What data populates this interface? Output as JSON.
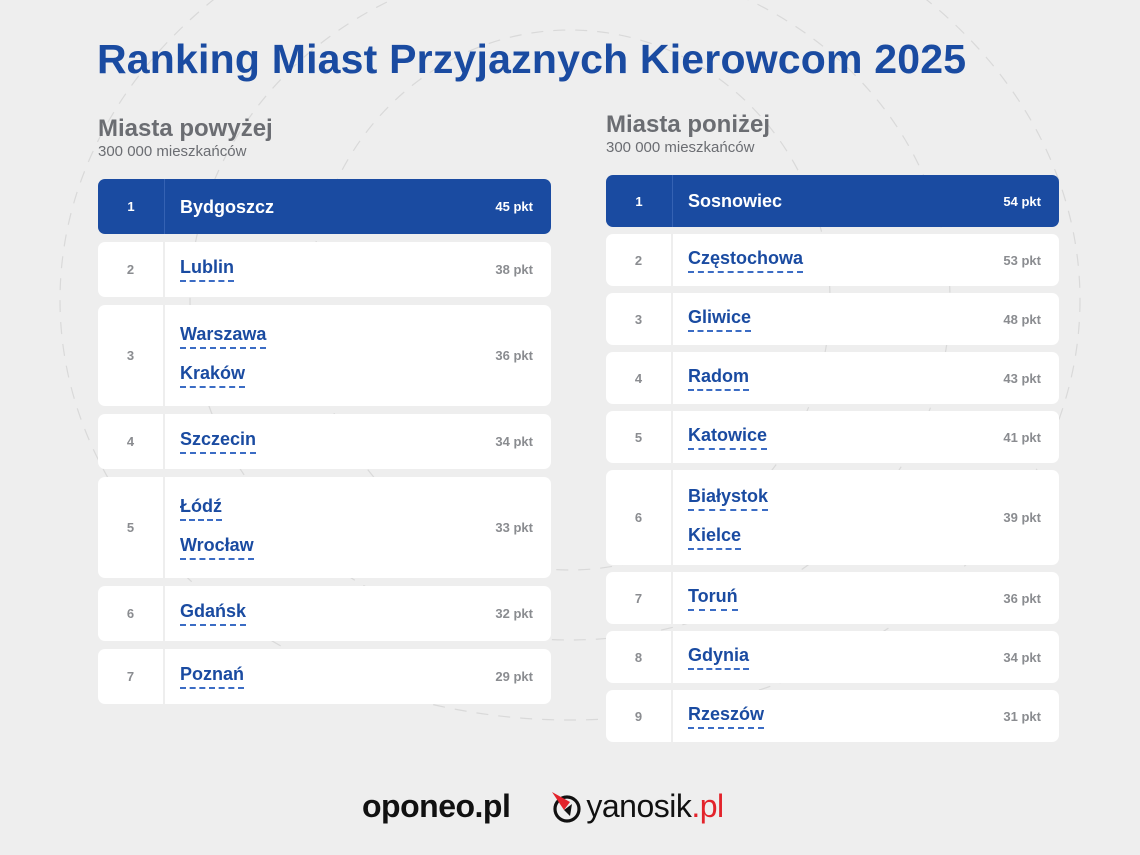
{
  "title": "Ranking Miast Przyjaznych Kierowcom 2025",
  "sections": {
    "above": {
      "heading": "Miasta powyżej",
      "subheading": "300 000 mieszkańców",
      "rows": [
        {
          "rank": "1",
          "cities": [
            "Bydgoszcz"
          ],
          "score": "45 pkt",
          "highlight": true
        },
        {
          "rank": "2",
          "cities": [
            "Lublin"
          ],
          "score": "38 pkt"
        },
        {
          "rank": "3",
          "cities": [
            "Warszawa",
            "Kraków"
          ],
          "score": "36 pkt"
        },
        {
          "rank": "4",
          "cities": [
            "Szczecin"
          ],
          "score": "34 pkt"
        },
        {
          "rank": "5",
          "cities": [
            "Łódź",
            "Wrocław"
          ],
          "score": "33 pkt"
        },
        {
          "rank": "6",
          "cities": [
            "Gdańsk"
          ],
          "score": "32 pkt"
        },
        {
          "rank": "7",
          "cities": [
            "Poznań"
          ],
          "score": "29 pkt"
        }
      ]
    },
    "below": {
      "heading": "Miasta poniżej",
      "subheading": "300 000 mieszkańców",
      "rows": [
        {
          "rank": "1",
          "cities": [
            "Sosnowiec"
          ],
          "score": "54 pkt",
          "highlight": true
        },
        {
          "rank": "2",
          "cities": [
            "Częstochowa"
          ],
          "score": "53 pkt"
        },
        {
          "rank": "3",
          "cities": [
            "Gliwice"
          ],
          "score": "48 pkt"
        },
        {
          "rank": "4",
          "cities": [
            "Radom"
          ],
          "score": "43 pkt"
        },
        {
          "rank": "5",
          "cities": [
            "Katowice"
          ],
          "score": "41 pkt"
        },
        {
          "rank": "6",
          "cities": [
            "Białystok",
            "Kielce"
          ],
          "score": "39 pkt"
        },
        {
          "rank": "7",
          "cities": [
            "Toruń"
          ],
          "score": "36 pkt"
        },
        {
          "rank": "8",
          "cities": [
            "Gdynia"
          ],
          "score": "34 pkt"
        },
        {
          "rank": "9",
          "cities": [
            "Rzeszów"
          ],
          "score": "31 pkt"
        }
      ]
    }
  },
  "footer": {
    "logo_oponeo": "oponeo.pl",
    "logo_yanosik_main": "yanosik",
    "logo_yanosik_tld": ".pl"
  },
  "colors": {
    "brand_blue": "#1a4ba1",
    "background": "#eeeeee",
    "muted_gray": "#8a8c90",
    "yanosik_red": "#e3232b"
  }
}
